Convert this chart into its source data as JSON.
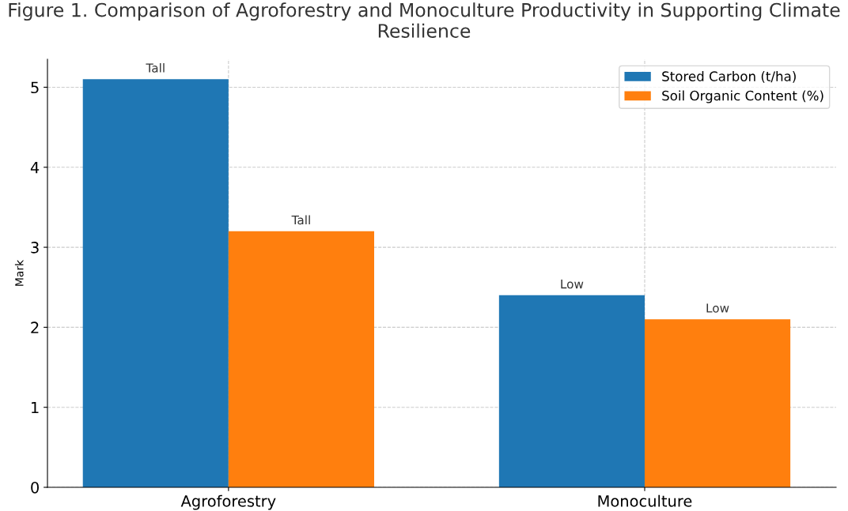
{
  "chart_data": {
    "type": "bar",
    "title": "Figure 1. Comparison of Agroforestry and Monoculture Productivity in Supporting Climate Resilience",
    "ylabel": "Mark",
    "categories": [
      "Agroforestry",
      "Monoculture"
    ],
    "series": [
      {
        "name": "Stored Carbon (t/ha)",
        "color": "#1f77b4",
        "values": [
          5.1,
          2.4
        ],
        "value_labels": [
          "Tall",
          "Low"
        ]
      },
      {
        "name": "Soil Organic Content (%)",
        "color": "#ff7f0e",
        "values": [
          3.2,
          2.1
        ],
        "value_labels": [
          "Tall",
          "Low"
        ]
      }
    ],
    "ylim": [
      0,
      5.35
    ],
    "yticks": [
      0,
      1,
      2,
      3,
      4,
      5
    ],
    "grid": true,
    "legend": "top right"
  }
}
